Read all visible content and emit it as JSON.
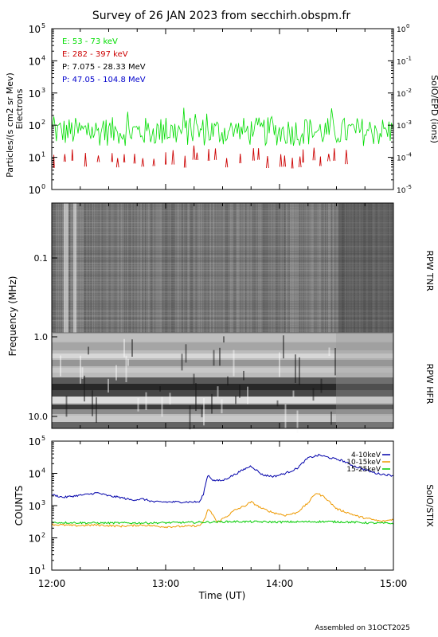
{
  "title": "Survey of 26 JAN 2023 from secchirh.obspm.fr",
  "footer": "Assembled on 31OCT2025",
  "colors": {
    "e_low": "#00dd00",
    "e_high": "#cc0000",
    "p_low": "#000000",
    "p_high": "#0000cc",
    "stix_low": "#0000aa",
    "stix_mid": "#ee9900",
    "stix_high": "#00cc00"
  },
  "chart_data": [
    {
      "type": "line",
      "name": "epd",
      "ylabel": "Particles/(s cm2 sr Mev)",
      "ylabel2": "Electrons",
      "right_label": "SolO/EPD (ions)",
      "yscale": "log",
      "ylim": [
        1,
        100000
      ],
      "y_ticks": [
        {
          "base": "10",
          "exp": "0"
        },
        {
          "base": "10",
          "exp": "1"
        },
        {
          "base": "10",
          "exp": "2"
        },
        {
          "base": "10",
          "exp": "3"
        },
        {
          "base": "10",
          "exp": "4"
        },
        {
          "base": "10",
          "exp": "5"
        }
      ],
      "y2_ticks": [
        {
          "base": "10",
          "exp": "-5"
        },
        {
          "base": "10",
          "exp": "-4"
        },
        {
          "base": "10",
          "exp": "-3"
        },
        {
          "base": "10",
          "exp": "-2"
        },
        {
          "base": "10",
          "exp": "-1"
        },
        {
          "base": "10",
          "exp": "0"
        }
      ],
      "legend_position": "top-left",
      "series": [
        {
          "name": "E: 53 - 73 keV",
          "level": 70,
          "spread": 0.45
        },
        {
          "name": "E: 282 - 397 keV",
          "level": 6,
          "spread": 0.3
        },
        {
          "name": "P: 7.075 - 28.33 MeV"
        },
        {
          "name": "P: 47.05 - 104.8 MeV"
        }
      ]
    },
    {
      "type": "heatmap",
      "name": "rpw",
      "ylabel": "Frequency (MHz)",
      "panels": [
        {
          "label": "RPW TNR",
          "y_ticks": [
            "0.1",
            "1.0"
          ]
        },
        {
          "label": "RPW HFR",
          "y_ticks": [
            "10.0"
          ]
        }
      ]
    },
    {
      "type": "line",
      "name": "stix",
      "ylabel": "COUNTS",
      "right_label": "SolO/STIX",
      "xlabel": "Time (UT)",
      "x_ticks": [
        "12:00",
        "13:00",
        "14:00",
        "15:00"
      ],
      "xlim": [
        12.0,
        15.0
      ],
      "yscale": "log",
      "ylim": [
        10,
        100000
      ],
      "y_ticks": [
        {
          "base": "10",
          "exp": "1"
        },
        {
          "base": "10",
          "exp": "2"
        },
        {
          "base": "10",
          "exp": "3"
        },
        {
          "base": "10",
          "exp": "4"
        },
        {
          "base": "10",
          "exp": "5"
        }
      ],
      "legend_position": "top-right",
      "series": [
        {
          "name": "4-10keV",
          "x": [
            12.0,
            12.1,
            12.2,
            12.3,
            12.4,
            12.5,
            12.6,
            12.7,
            12.8,
            12.9,
            13.0,
            13.1,
            13.2,
            13.3,
            13.33,
            13.37,
            13.42,
            13.5,
            13.6,
            13.7,
            13.75,
            13.85,
            13.95,
            14.05,
            14.15,
            14.25,
            14.35,
            14.45,
            14.55,
            14.65,
            14.75,
            14.85,
            15.0
          ],
          "y": [
            2200,
            1800,
            2000,
            2200,
            2500,
            2000,
            1800,
            1500,
            1600,
            1300,
            1300,
            1300,
            1300,
            1300,
            2200,
            9000,
            6000,
            6000,
            9000,
            14000,
            17000,
            9000,
            8000,
            10000,
            14000,
            30000,
            37000,
            30000,
            25000,
            17000,
            13000,
            10000,
            8500
          ]
        },
        {
          "name": "10-15keV",
          "x": [
            12.0,
            12.2,
            12.4,
            12.6,
            12.8,
            13.0,
            13.2,
            13.3,
            13.35,
            13.37,
            13.42,
            13.45,
            13.55,
            13.6,
            13.7,
            13.75,
            13.85,
            13.95,
            14.05,
            14.15,
            14.25,
            14.32,
            14.4,
            14.5,
            14.6,
            14.7,
            14.8,
            14.9,
            15.0
          ],
          "y": [
            260,
            240,
            250,
            230,
            250,
            220,
            230,
            240,
            400,
            800,
            500,
            300,
            500,
            700,
            1000,
            1300,
            800,
            600,
            500,
            600,
            1200,
            2500,
            1800,
            800,
            600,
            450,
            380,
            320,
            380
          ]
        },
        {
          "name": "15-25keV",
          "x": [
            12.0,
            12.4,
            12.8,
            13.2,
            13.6,
            14.0,
            14.4,
            14.6,
            14.8,
            15.0
          ],
          "y": [
            300,
            290,
            290,
            300,
            320,
            310,
            320,
            310,
            290,
            280
          ]
        }
      ]
    }
  ]
}
